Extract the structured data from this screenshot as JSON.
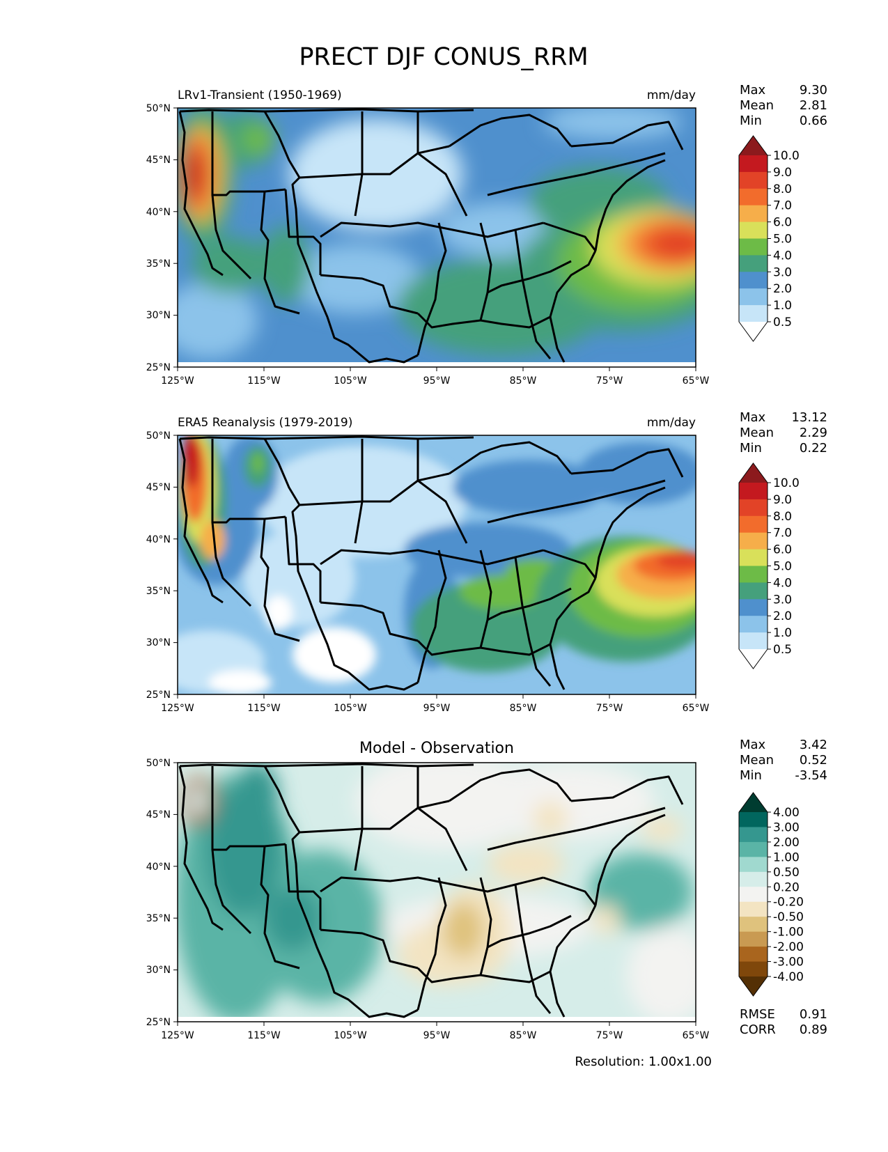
{
  "figure": {
    "title": "PRECT DJF CONUS_RRM",
    "resolution_label": "Resolution: 1.00x1.00"
  },
  "x_ticks": [
    "125°W",
    "115°W",
    "105°W",
    "95°W",
    "85°W",
    "75°W",
    "65°W"
  ],
  "y_ticks": [
    "50°N",
    "45°N",
    "40°N",
    "35°N",
    "30°N",
    "25°N"
  ],
  "panels": [
    {
      "left_title": "LRv1-Transient (1950-1969)",
      "center_title": "",
      "units": "mm/day",
      "stats": [
        {
          "label": "Max",
          "value": "9.30"
        },
        {
          "label": "Mean",
          "value": "2.81"
        },
        {
          "label": "Min",
          "value": "0.66"
        }
      ]
    },
    {
      "left_title": "ERA5 Reanalysis (1979-2019)",
      "center_title": "",
      "units": "mm/day",
      "stats": [
        {
          "label": "Max",
          "value": "13.12"
        },
        {
          "label": "Mean",
          "value": "2.29"
        },
        {
          "label": "Min",
          "value": "0.22"
        }
      ]
    },
    {
      "left_title": "",
      "center_title": "Model - Observation",
      "units": "",
      "stats": [
        {
          "label": "Max",
          "value": "3.42"
        },
        {
          "label": "Mean",
          "value": "0.52"
        },
        {
          "label": "Min",
          "value": "-3.54"
        }
      ],
      "metrics": [
        {
          "label": "RMSE",
          "value": "0.91"
        },
        {
          "label": "CORR",
          "value": "0.89"
        }
      ]
    }
  ],
  "colorbars": {
    "precip": {
      "labels": [
        "10.0",
        "9.0",
        "8.0",
        "7.0",
        "6.0",
        "5.0",
        "4.0",
        "3.0",
        "2.0",
        "1.0",
        "0.5"
      ],
      "colors": [
        "#8c1a1d",
        "#c4191f",
        "#e24327",
        "#f26c2c",
        "#f6ae4a",
        "#d9e05a",
        "#6dbb47",
        "#45a07c",
        "#4f90cd",
        "#8cc3ea",
        "#c7e5f8",
        "#ffffff"
      ]
    },
    "diff": {
      "labels": [
        "4.00",
        "3.00",
        "2.00",
        "1.00",
        "0.50",
        "0.20",
        "-0.20",
        "-0.50",
        "-1.00",
        "-2.00",
        "-3.00",
        "-4.00"
      ],
      "colors": [
        "#003c30",
        "#01665e",
        "#35978f",
        "#5ab4a6",
        "#a0d9cf",
        "#d6ede9",
        "#f3f3f1",
        "#f3e4c2",
        "#dfc27d",
        "#c99a52",
        "#a9651e",
        "#7f470b",
        "#543005"
      ]
    }
  }
}
